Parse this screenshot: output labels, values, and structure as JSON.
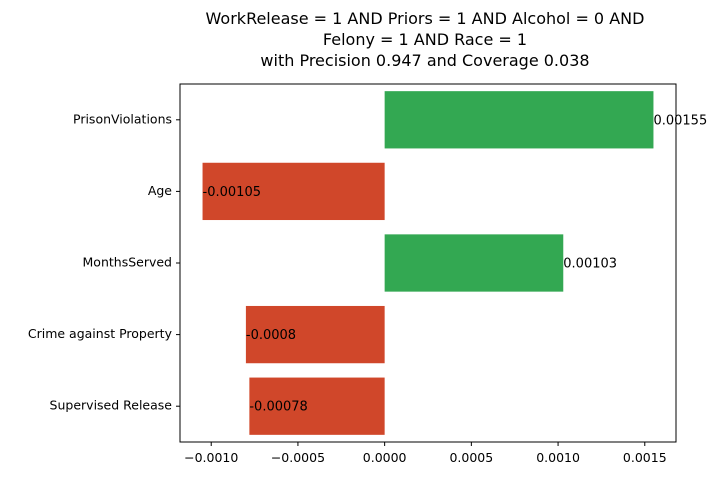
{
  "chart_data": {
    "type": "bar",
    "orientation": "horizontal",
    "title_lines": [
      "WorkRelease = 1 AND Priors = 1 AND Alcohol = 0 AND",
      "Felony = 1 AND Race = 1",
      "with Precision 0.947 and Coverage 0.038"
    ],
    "categories": [
      "PrisonViolations",
      "Age",
      "MonthsServed",
      "Crime against Property",
      "Supervised Release"
    ],
    "values": [
      0.00155,
      -0.00105,
      0.00103,
      -0.0008,
      -0.00078
    ],
    "value_labels": [
      "0.00155",
      "-0.00105",
      "0.00103",
      "-0.0008",
      "-0.00078"
    ],
    "xlim": [
      -0.00118,
      0.00168
    ],
    "xticks": [
      -0.001,
      -0.0005,
      0.0,
      0.0005,
      0.001,
      0.0015
    ],
    "xtick_labels": [
      "−0.0010",
      "−0.0005",
      "0.0000",
      "0.0005",
      "0.0010",
      "0.0015"
    ],
    "grid": false,
    "colors": {
      "positive": "#33a852",
      "negative": "#d0472a"
    }
  }
}
